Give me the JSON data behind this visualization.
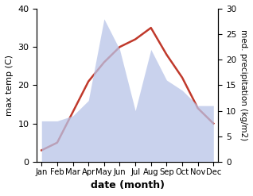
{
  "months": [
    "Jan",
    "Feb",
    "Mar",
    "Apr",
    "May",
    "Jun",
    "Jul",
    "Aug",
    "Sep",
    "Oct",
    "Nov",
    "Dec"
  ],
  "temp_max": [
    3,
    5,
    13,
    21,
    26,
    30,
    32,
    35,
    28,
    22,
    14,
    10
  ],
  "precipitation": [
    8,
    8,
    9,
    12,
    28,
    22,
    10,
    22,
    16,
    14,
    11,
    11
  ],
  "temp_color": "#c0392b",
  "precip_color_fill": "#b8c4e8",
  "ylabel_left": "max temp (C)",
  "ylabel_right": "med. precipitation (kg/m2)",
  "xlabel": "date (month)",
  "ylim_left": [
    0,
    40
  ],
  "ylim_right": [
    0,
    30
  ],
  "yticks_left": [
    0,
    10,
    20,
    30,
    40
  ],
  "yticks_right": [
    0,
    5,
    10,
    15,
    20,
    25,
    30
  ],
  "temp_linewidth": 1.8
}
